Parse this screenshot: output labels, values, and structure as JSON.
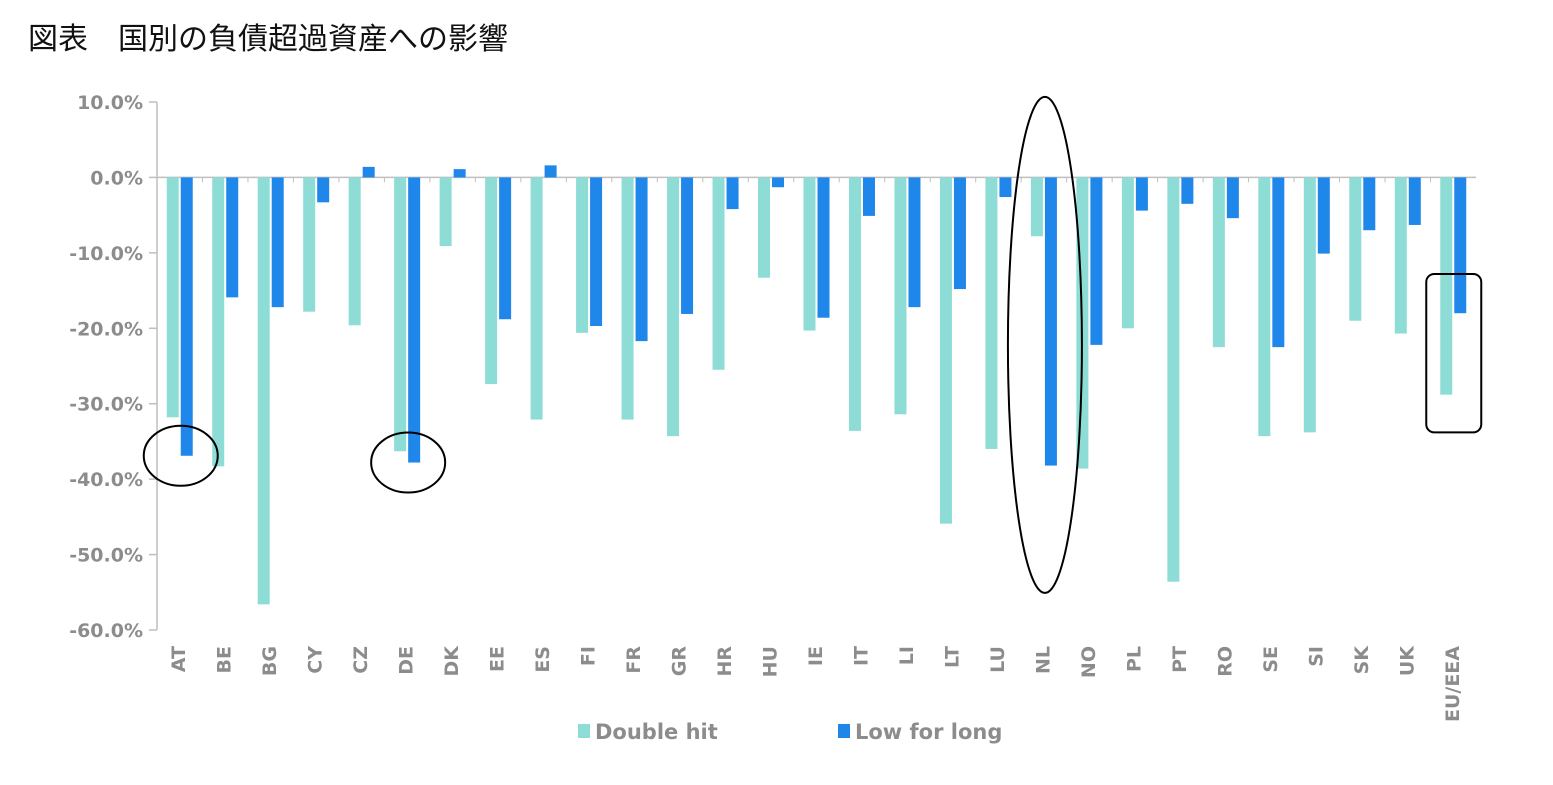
{
  "title": "図表　国別の負債超過資産への影響",
  "colors": {
    "double_hit": "#8ddcd6",
    "low_for_long": "#1f86ea",
    "axis": "#bfbfbf",
    "tick_text": "#8c8c8c",
    "annotation": "#000000"
  },
  "chart_data": {
    "type": "bar",
    "title": "",
    "xlabel": "",
    "ylabel": "",
    "ylim": [
      -60,
      10
    ],
    "yticks": [
      10,
      0,
      -10,
      -20,
      -30,
      -40,
      -50,
      -60
    ],
    "ytick_labels": [
      "10.0%",
      "0.0%",
      "-10.0%",
      "-20.0%",
      "-30.0%",
      "-40.0%",
      "-50.0%",
      "-60.0%"
    ],
    "categories": [
      "AT",
      "BE",
      "BG",
      "CY",
      "CZ",
      "DE",
      "DK",
      "EE",
      "ES",
      "FI",
      "FR",
      "GR",
      "HR",
      "HU",
      "IE",
      "IT",
      "LI",
      "LT",
      "LU",
      "NL",
      "NO",
      "PL",
      "PT",
      "RO",
      "SE",
      "SI",
      "SK",
      "UK",
      "EU/EEA"
    ],
    "series": [
      {
        "name": "Double hit",
        "values": [
          -31.8,
          -38.3,
          -56.6,
          -17.8,
          -19.6,
          -36.3,
          -9.1,
          -27.4,
          -32.1,
          -20.6,
          -32.1,
          -34.3,
          -25.5,
          -13.3,
          -20.3,
          -33.6,
          -31.4,
          -45.9,
          -36.0,
          -7.8,
          -38.6,
          -20.0,
          -53.6,
          -22.5,
          -34.3,
          -33.8,
          -19.0,
          -20.7,
          -28.8
        ]
      },
      {
        "name": "Low for long",
        "values": [
          -36.9,
          -15.9,
          -17.2,
          -3.3,
          1.4,
          -37.8,
          1.1,
          -18.8,
          1.6,
          -19.7,
          -21.7,
          -18.1,
          -4.2,
          -1.3,
          -18.6,
          -5.1,
          -17.2,
          -14.8,
          -2.6,
          -38.2,
          -22.2,
          -4.4,
          -3.5,
          -5.4,
          -22.5,
          -10.1,
          -7.0,
          -6.3,
          -18.0
        ]
      }
    ],
    "legend": {
      "position": "bottom",
      "items": [
        "Double hit",
        "Low for long"
      ]
    },
    "grid": false,
    "annotations": [
      {
        "type": "ellipse",
        "category": "AT"
      },
      {
        "type": "ellipse",
        "category": "DE"
      },
      {
        "type": "ellipse",
        "category": "NL"
      },
      {
        "type": "rounded-rect",
        "category": "EU/EEA"
      }
    ]
  }
}
